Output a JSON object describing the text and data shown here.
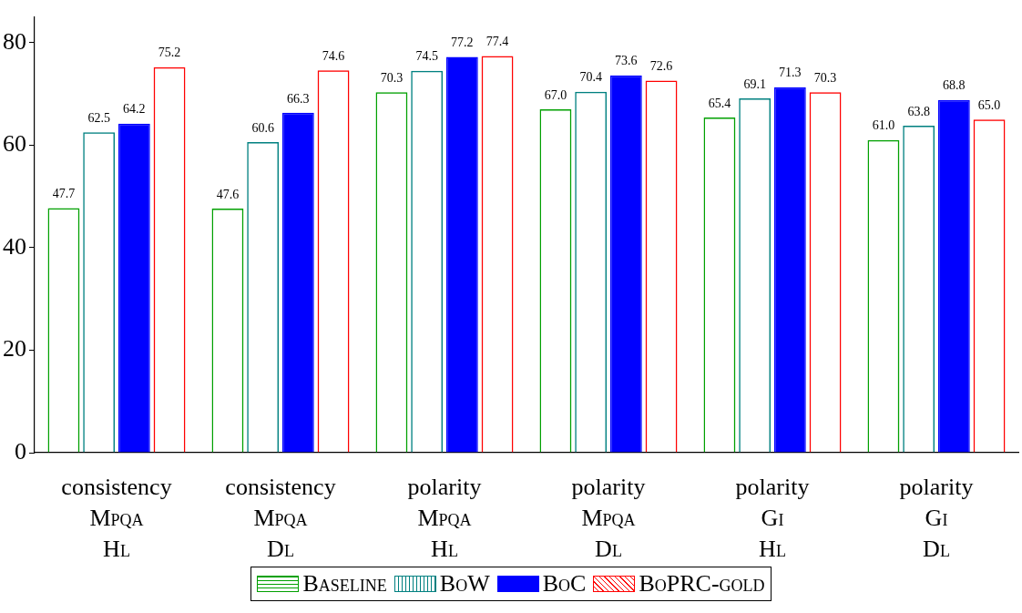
{
  "chart_data": {
    "type": "bar",
    "categories": [
      "consistency\nMpqa\nHl",
      "consistency\nMpqa\nDl",
      "polarity\nMpqa\nHl",
      "polarity\nMpqa\nDl",
      "polarity\nGi\nHl",
      "polarity\nGi\nDl"
    ],
    "series": [
      {
        "name": "Baseline",
        "color": "#00a000",
        "values": [
          47.7,
          47.6,
          70.3,
          67.0,
          65.4,
          61.0
        ],
        "value_labels": [
          "47.7",
          "47.6",
          "70.3",
          "67.0",
          "65.4",
          "61.0"
        ]
      },
      {
        "name": "BoW",
        "color": "#008080",
        "values": [
          62.5,
          60.6,
          74.5,
          70.4,
          69.1,
          63.8
        ],
        "value_labels": [
          "62.5",
          "60.6",
          "74.5",
          "70.4",
          "69.1",
          "63.8"
        ]
      },
      {
        "name": "BoC",
        "color": "#0000ff",
        "values": [
          64.2,
          66.3,
          77.2,
          73.6,
          71.3,
          68.8
        ],
        "value_labels": [
          "64.2",
          "66.3",
          "77.2",
          "73.6",
          "71.3",
          "68.8"
        ]
      },
      {
        "name": "BoPRC-gold",
        "color": "#ff0000",
        "values": [
          75.2,
          74.6,
          77.4,
          72.6,
          70.3,
          65.0
        ],
        "value_labels": [
          "75.2",
          "74.6",
          "77.4",
          "72.6",
          "70.3",
          "65.0"
        ]
      }
    ],
    "ylim": [
      0,
      85
    ],
    "yticks": [
      0,
      20,
      40,
      60,
      80
    ],
    "grid": false,
    "legend": "bottom"
  }
}
